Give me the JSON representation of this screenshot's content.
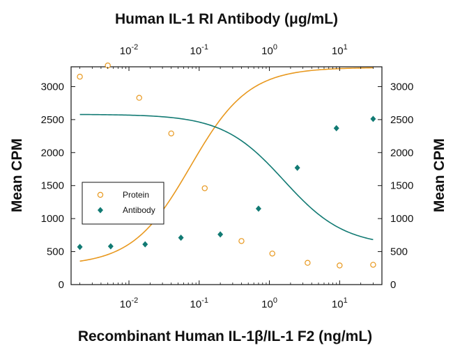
{
  "chart_data": {
    "type": "scatter",
    "title": "Human IL-1 RI Antibody (μg/mL)",
    "xlabel": "Recombinant Human IL-1β/IL-1 F2 (ng/mL)",
    "ylabel": "Mean CPM",
    "ylabel_right": "Mean CPM",
    "x_scale": "log",
    "x_range": [
      0.0015,
      40
    ],
    "y_range": [
      0,
      3300
    ],
    "y_ticks": [
      "0",
      "500",
      "1000",
      "1500",
      "2000",
      "2500",
      "3000"
    ],
    "x_ticks_bottom": [
      {
        "value": 0.01,
        "base": "10",
        "exp": "-2"
      },
      {
        "value": 0.1,
        "base": "10",
        "exp": "-1"
      },
      {
        "value": 1,
        "base": "10",
        "exp": "0"
      },
      {
        "value": 10,
        "base": "10",
        "exp": "1"
      }
    ],
    "x_ticks_top": [
      {
        "value": 0.01,
        "base": "10",
        "exp": "-2"
      },
      {
        "value": 0.1,
        "base": "10",
        "exp": "-1"
      },
      {
        "value": 1,
        "base": "10",
        "exp": "0"
      },
      {
        "value": 10,
        "base": "10",
        "exp": "1"
      }
    ],
    "legend_position": "middle-left",
    "series": [
      {
        "name": "Protein",
        "marker": "open-circle",
        "color": "#e8981e",
        "x": [
          0.002,
          0.005,
          0.014,
          0.04,
          0.12,
          0.4,
          1.1,
          3.5,
          10,
          30
        ],
        "y": [
          3150,
          3320,
          2830,
          2290,
          1460,
          660,
          470,
          330,
          290,
          300
        ],
        "fit": {
          "top": 3290,
          "bottom": 290,
          "ec50": 0.075,
          "hill": -1.05
        }
      },
      {
        "name": "Antibody",
        "marker": "filled-diamond",
        "color": "#117a73",
        "x": [
          0.002,
          0.0055,
          0.017,
          0.055,
          0.2,
          0.7,
          2.5,
          9,
          30
        ],
        "y": [
          570,
          580,
          610,
          710,
          760,
          1150,
          1770,
          2370,
          2510
        ],
        "fit": {
          "top": 2580,
          "bottom": 580,
          "ec50": 1.6,
          "hill": 1.0
        }
      }
    ]
  }
}
